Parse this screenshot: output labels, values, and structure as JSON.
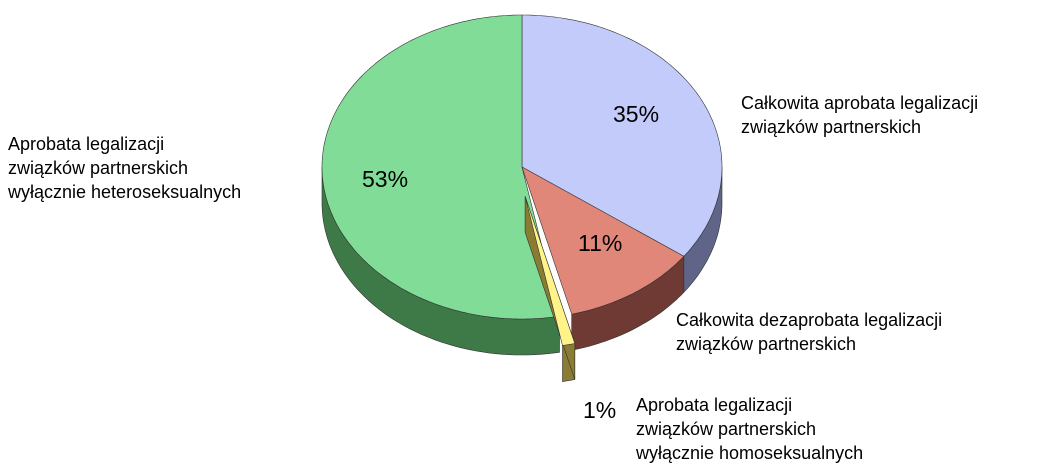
{
  "chart_data": {
    "type": "pie3d",
    "categories": [
      "Całkowita aprobata legalizacji\nzwiązków partnerskich",
      "Całkowita dezaprobata legalizacji\nzwiązków partnerskich",
      "Aprobata legalizacji\nzwiązków partnerskich\nwyłącznie homoseksualnych",
      "Aprobata legalizacji\nzwiązków partnerskich\nwyłącznie heteroseksualnych"
    ],
    "values": [
      35,
      11,
      1,
      53
    ],
    "value_labels": [
      "35%",
      "11%",
      "1%",
      "53%"
    ],
    "colors": [
      "#c3cbfb",
      "#e0877a",
      "#fff38a",
      "#80dc96"
    ],
    "side_colors": [
      "#5f6488",
      "#6e3a33",
      "#8a7c32",
      "#3e7a48"
    ]
  }
}
